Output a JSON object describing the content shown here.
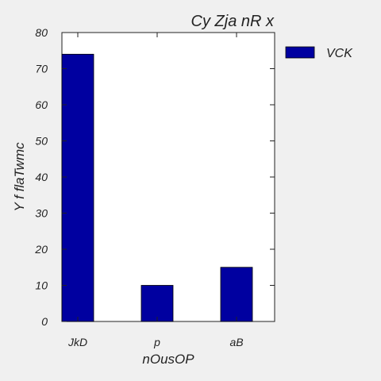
{
  "chart_data": {
    "type": "bar",
    "title": "Cy Zja nR x",
    "xlabel": "nOusOP",
    "ylabel": "Y f flaTwmc",
    "categories": [
      "JkD",
      "p",
      "aB"
    ],
    "series": [
      {
        "name": "VCK",
        "values": [
          74,
          10,
          15
        ],
        "color": "#0000a0"
      }
    ],
    "ylim": [
      0,
      80
    ],
    "yticks": [
      0,
      10,
      20,
      30,
      40,
      50,
      60,
      70,
      80
    ],
    "grid": false,
    "legend": {
      "position": "outside-right-top"
    },
    "colors": {
      "background": "#f0f0f0",
      "plot_background": "#ffffff",
      "axis": "#222222",
      "bar_edge": "#000000"
    }
  }
}
